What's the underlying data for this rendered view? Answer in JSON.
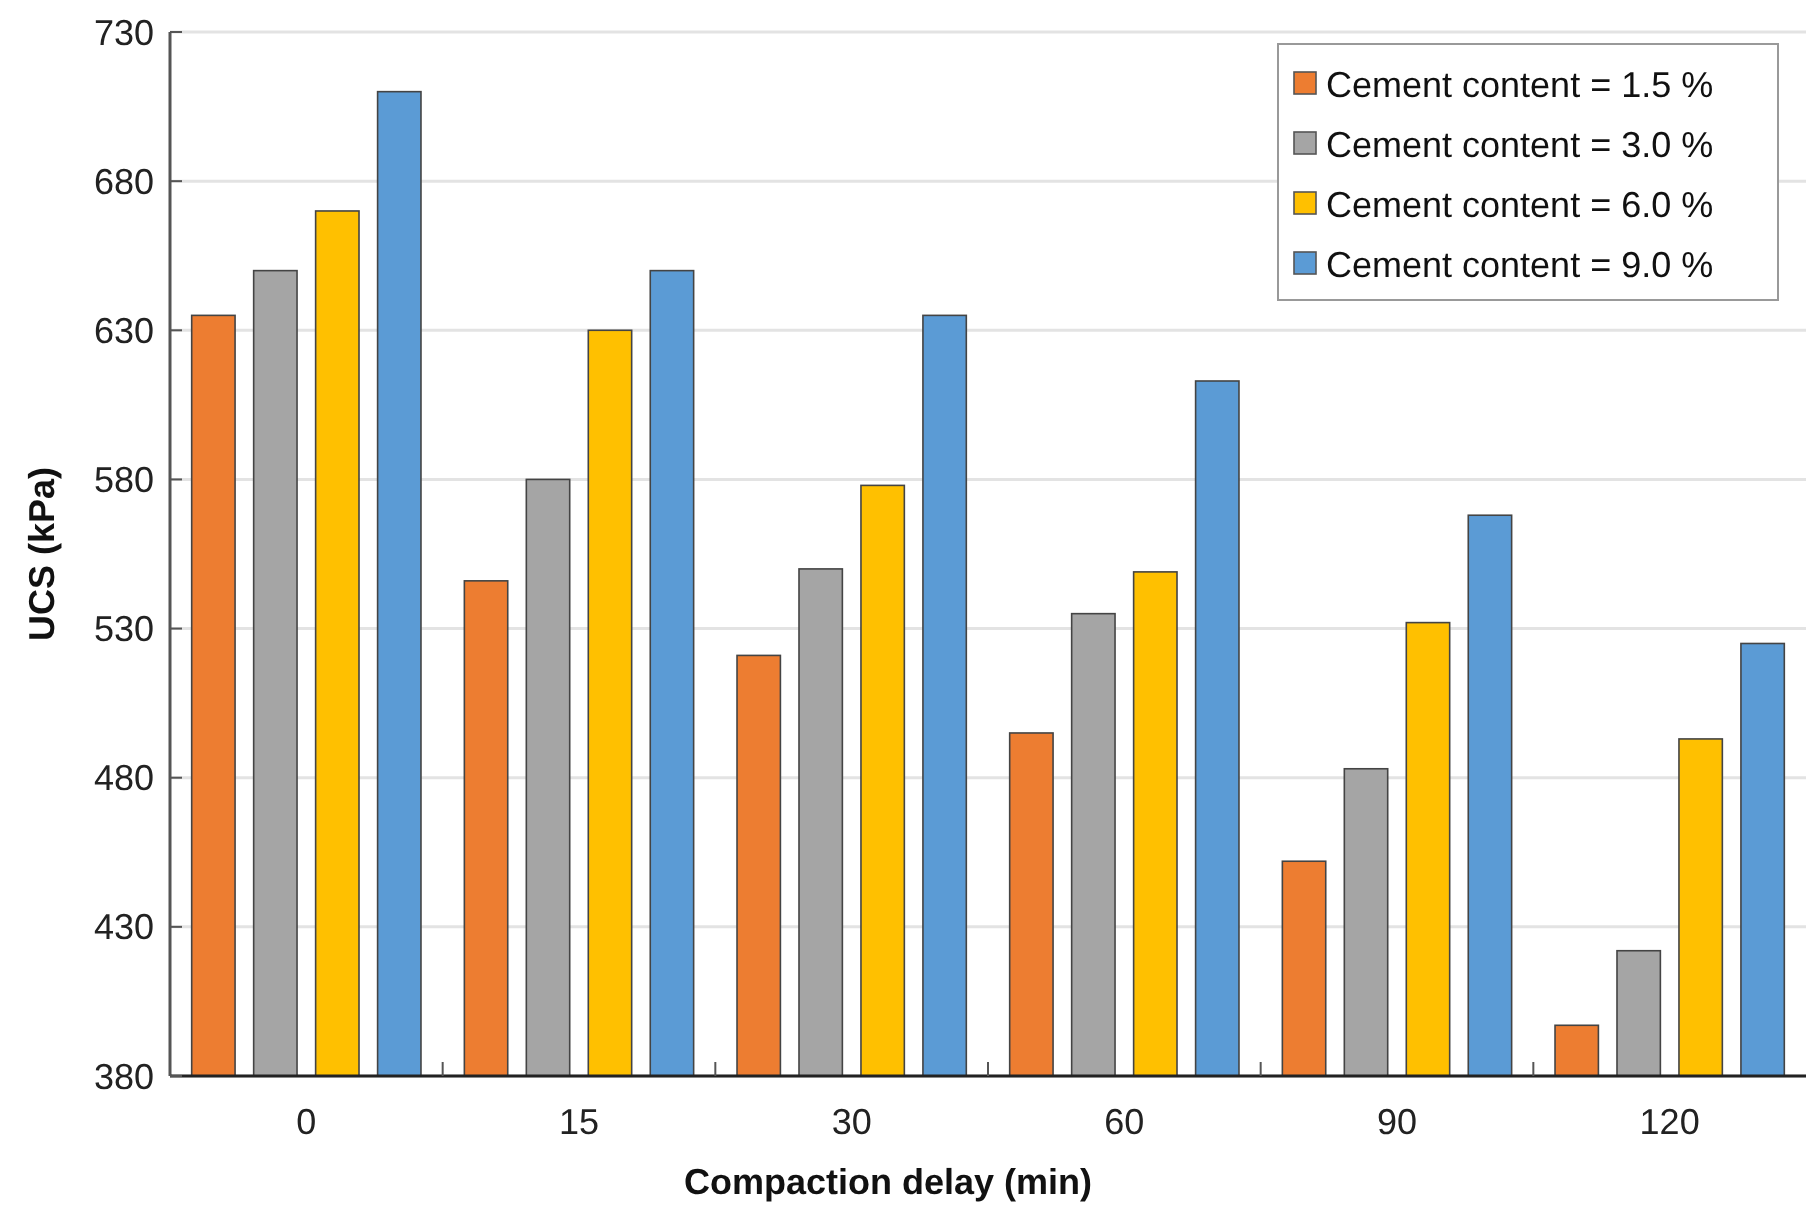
{
  "chart_data": {
    "type": "bar",
    "xlabel": "Compaction delay (min)",
    "ylabel": "UCS (kPa)",
    "categories": [
      "0",
      "15",
      "30",
      "60",
      "90",
      "120"
    ],
    "series": [
      {
        "name": "Cement content = 1.5 %",
        "color": "#ed7d31",
        "values": [
          635,
          546,
          521,
          495,
          452,
          397
        ]
      },
      {
        "name": "Cement content = 3.0 %",
        "color": "#a5a5a5",
        "values": [
          650,
          580,
          550,
          535,
          483,
          422
        ]
      },
      {
        "name": "Cement content = 6.0 %",
        "color": "#ffc000",
        "values": [
          670,
          630,
          578,
          549,
          532,
          493
        ]
      },
      {
        "name": "Cement content = 9.0 %",
        "color": "#5b9bd5",
        "values": [
          710,
          650,
          635,
          613,
          568,
          525
        ]
      }
    ],
    "ylim": [
      380,
      730
    ],
    "yticks": [
      380,
      430,
      480,
      530,
      580,
      630,
      680,
      730
    ],
    "grid": "y",
    "legend": "top right"
  }
}
